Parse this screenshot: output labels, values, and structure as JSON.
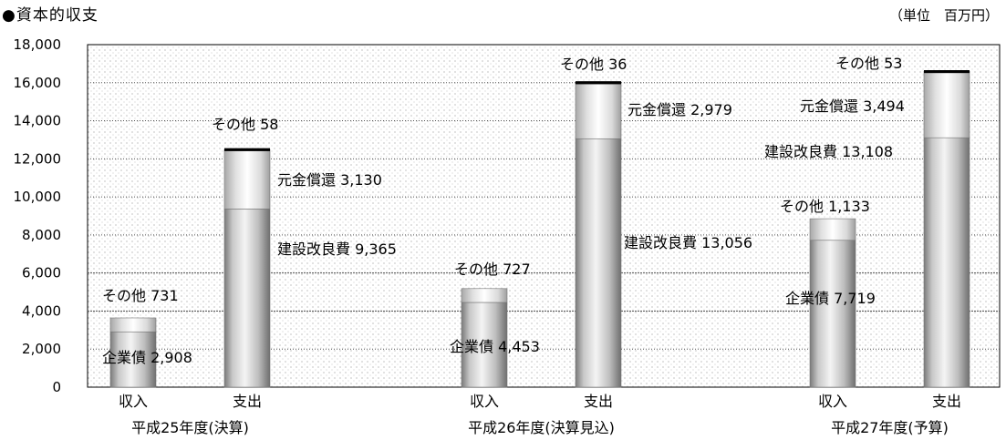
{
  "title": "●資本的収支",
  "unit": "（単位　百万円）",
  "chart_data": {
    "type": "bar",
    "stacked": true,
    "ylim": [
      0,
      18000
    ],
    "yticks": [
      0,
      2000,
      4000,
      6000,
      8000,
      10000,
      12000,
      14000,
      16000,
      18000
    ],
    "ytick_labels": [
      "0",
      "2,000",
      "4,000",
      "6,000",
      "8,000",
      "10,000",
      "12,000",
      "14,000",
      "16,000",
      "18,000"
    ],
    "groups": [
      {
        "label": "平成25年度(決算)",
        "bars": [
          {
            "label": "収入",
            "segments": [
              {
                "name": "企業債",
                "value": 2908,
                "label": "企業債 2,908"
              },
              {
                "name": "その他",
                "value": 731,
                "label": "その他 731"
              }
            ]
          },
          {
            "label": "支出",
            "segments": [
              {
                "name": "建設改良費",
                "value": 9365,
                "label": "建設改良費 9,365"
              },
              {
                "name": "元金償還",
                "value": 3130,
                "label": "元金償還 3,130"
              },
              {
                "name": "その他",
                "value": 58,
                "label": "その他 58"
              }
            ]
          }
        ]
      },
      {
        "label": "平成26年度(決算見込)",
        "bars": [
          {
            "label": "収入",
            "segments": [
              {
                "name": "企業債",
                "value": 4453,
                "label": "企業債 4,453"
              },
              {
                "name": "その他",
                "value": 727,
                "label": "その他 727"
              }
            ]
          },
          {
            "label": "支出",
            "segments": [
              {
                "name": "建設改良費",
                "value": 13056,
                "label": "建設改良費 13,056"
              },
              {
                "name": "元金償還",
                "value": 2979,
                "label": "元金償還 2,979"
              },
              {
                "name": "その他",
                "value": 36,
                "label": "その他 36"
              }
            ]
          }
        ]
      },
      {
        "label": "平成27年度(予算)",
        "bars": [
          {
            "label": "収入",
            "segments": [
              {
                "name": "企業債",
                "value": 7719,
                "label": "企業債 7,719"
              },
              {
                "name": "その他",
                "value": 1133,
                "label": "その他 1,133"
              }
            ]
          },
          {
            "label": "支出",
            "segments": [
              {
                "name": "建設改良費",
                "value": 13108,
                "label": "建設改良費 13,108"
              },
              {
                "name": "元金償還",
                "value": 3494,
                "label": "元金償還 3,494"
              },
              {
                "name": "その他",
                "value": 53,
                "label": "その他 53"
              }
            ]
          }
        ]
      }
    ]
  }
}
